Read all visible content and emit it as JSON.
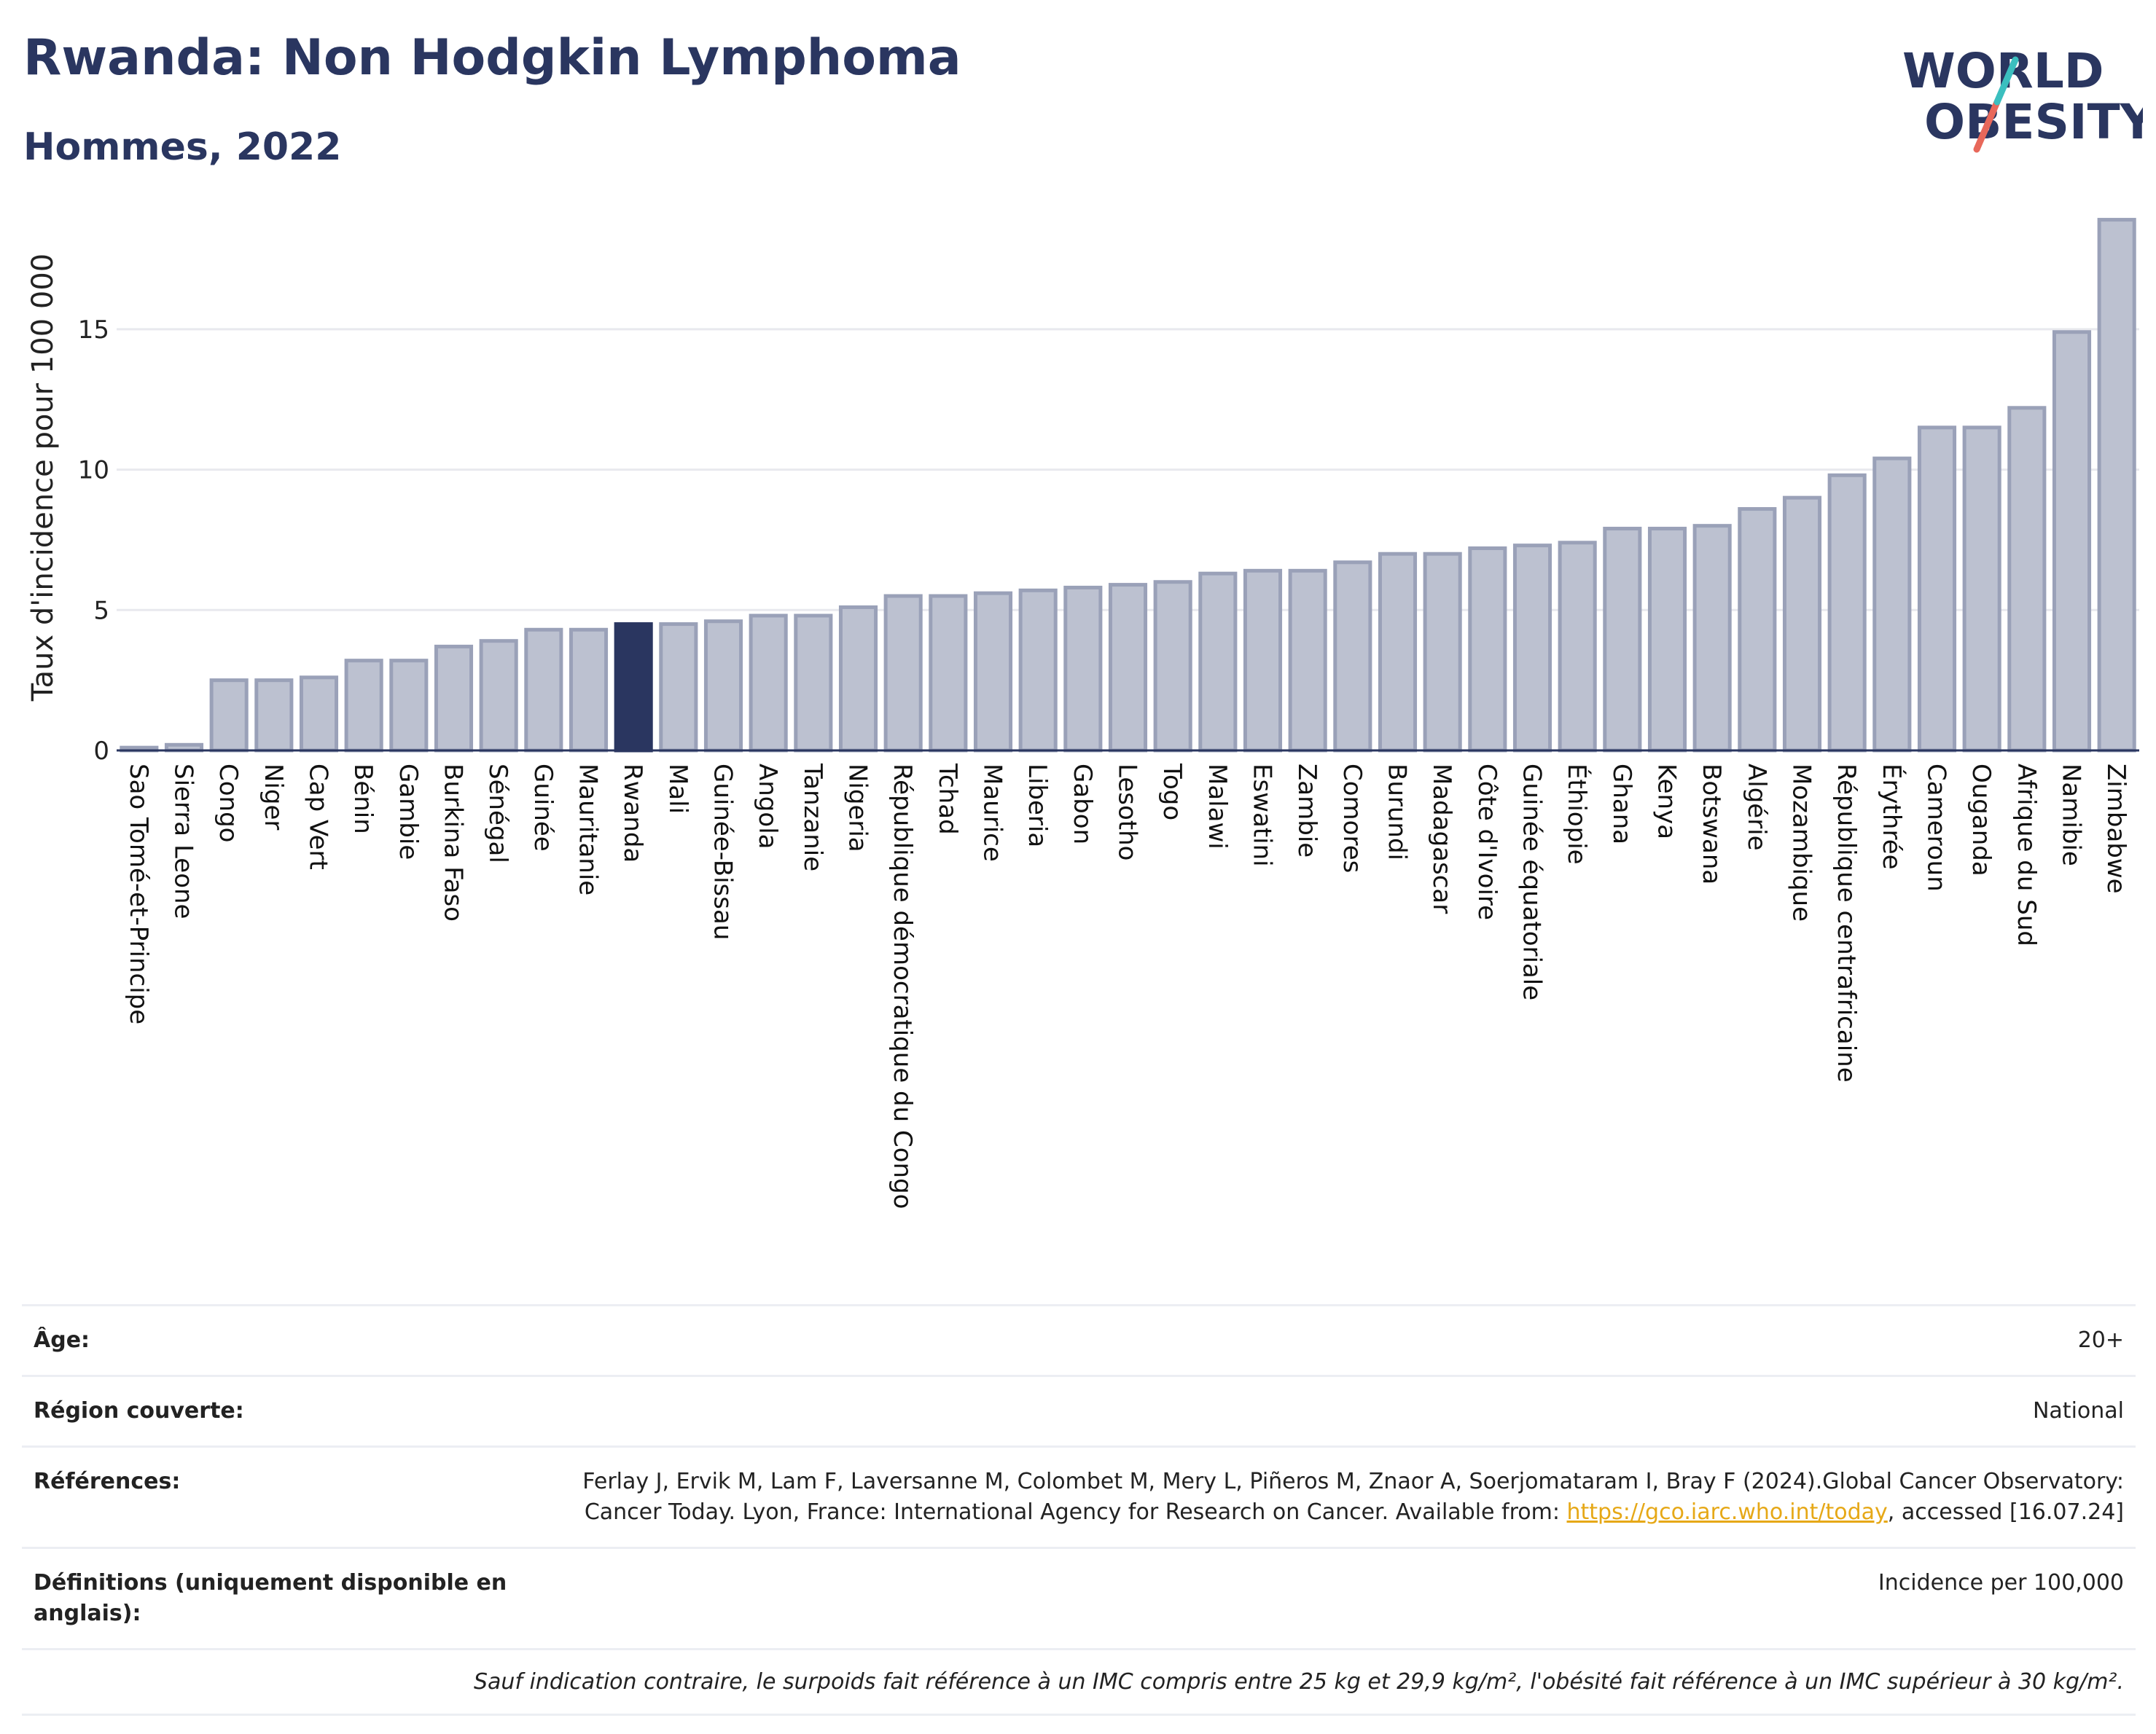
{
  "title": "Rwanda: Non Hodgkin Lymphoma",
  "subtitle": "Hommes, 2022",
  "logo": {
    "line1": "WORLD",
    "line2": "OBESITY"
  },
  "chart_data": {
    "type": "bar",
    "ylabel": "Taux d'incidence pour 100 000",
    "xlabel": "",
    "ylim": [
      0,
      19.2
    ],
    "yticks": [
      0,
      5,
      10,
      15
    ],
    "grid": true,
    "highlight": "Rwanda",
    "colors": {
      "bar": "#bcc1d0",
      "bar_edge": "#9aa1b8",
      "highlight": "#2a3660",
      "grid": "#e8e9ee",
      "axis": "#2a3660"
    },
    "categories": [
      "Sao Tomé-et-Principe",
      "Sierra Leone",
      "Congo",
      "Niger",
      "Cap Vert",
      "Bénin",
      "Gambie",
      "Burkina Faso",
      "Sénégal",
      "Guinée",
      "Mauritanie",
      "Rwanda",
      "Mali",
      "Guinée-Bissau",
      "Angola",
      "Tanzanie",
      "Nigeria",
      "République démocratique du Congo",
      "Tchad",
      "Maurice",
      "Liberia",
      "Gabon",
      "Lesotho",
      "Togo",
      "Malawi",
      "Eswatini",
      "Zambie",
      "Comores",
      "Burundi",
      "Madagascar",
      "Côte d'Ivoire",
      "Guinée équatoriale",
      "Éthiopie",
      "Ghana",
      "Kenya",
      "Botswana",
      "Algérie",
      "Mozambique",
      "République centrafricaine",
      "Érythrée",
      "Cameroun",
      "Ouganda",
      "Afrique du Sud",
      "Namibie",
      "Zimbabwe"
    ],
    "values": [
      0.1,
      0.2,
      2.5,
      2.5,
      2.6,
      3.2,
      3.2,
      3.7,
      3.9,
      4.3,
      4.3,
      4.5,
      4.5,
      4.6,
      4.8,
      4.8,
      5.1,
      5.5,
      5.5,
      5.6,
      5.7,
      5.8,
      5.9,
      6.0,
      6.3,
      6.4,
      6.4,
      6.7,
      7.0,
      7.0,
      7.2,
      7.3,
      7.4,
      7.9,
      7.9,
      8.0,
      8.6,
      9.0,
      9.8,
      10.4,
      11.5,
      11.5,
      12.2,
      14.9,
      18.9
    ]
  },
  "meta": {
    "age_label": "Âge:",
    "age_value": "20+",
    "region_label": "Région couverte:",
    "region_value": "National",
    "refs_label": "Références:",
    "refs_text": "Ferlay J, Ervik M, Lam F, Laversanne M, Colombet M, Mery L, Piñeros M, Znaor A, Soerjomataram I, Bray F (2024).Global Cancer Observatory: Cancer Today. Lyon, France: International Agency for Research on Cancer. Available from: ",
    "refs_link": "https://gco.iarc.who.int/today",
    "refs_tail": ", accessed [16.07.24]",
    "defs_label": "Définitions (uniquement disponible en anglais):",
    "defs_value": "Incidence per 100,000",
    "note": "Sauf indication contraire, le surpoids fait référence à un IMC compris entre 25 kg et 29,9 kg/m², l'obésité fait référence à un IMC supérieur à 30 kg/m²."
  }
}
